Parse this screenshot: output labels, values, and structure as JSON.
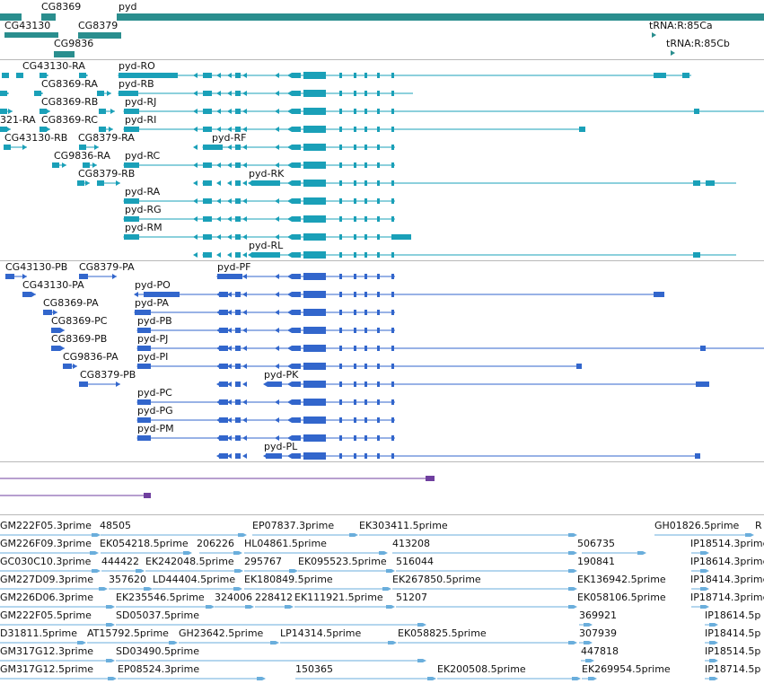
{
  "colors": {
    "gene": "#2a8e8e",
    "transcript": "#1aa0b8",
    "protein": "#3266cc",
    "other": "#6f3f9f",
    "est": "#6aaedc",
    "separator": "#b8b8b8"
  },
  "tracks": {
    "genes": {
      "labels": [
        "CG8369",
        "pyd",
        "CG43130",
        "CG8379",
        "tRNA:R:85Ca",
        "CG9836",
        "tRNA:R:85Cb"
      ]
    },
    "transcripts": {
      "labels": [
        "CG43130-RA",
        "pyd-RO",
        "CG8369-RA",
        "pyd-RB",
        "CG8369-RB",
        "pyd-RJ",
        "321-RA",
        "CG8369-RC",
        "pyd-RI",
        "CG43130-RB",
        "CG8379-RA",
        "pyd-RF",
        "CG9836-RA",
        "pyd-RC",
        "CG8379-RB",
        "pyd-RK",
        "pyd-RA",
        "pyd-RG",
        "pyd-RM",
        "pyd-RL"
      ]
    },
    "proteins": {
      "labels": [
        "CG43130-PB",
        "CG8379-PA",
        "pyd-PF",
        "CG43130-PA",
        "pyd-PO",
        "CG8369-PA",
        "pyd-PA",
        "CG8369-PC",
        "pyd-PB",
        "CG8369-PB",
        "pyd-PJ",
        "CG9836-PA",
        "pyd-PI",
        "CG8379-PB",
        "pyd-PK",
        "pyd-PC",
        "pyd-PG",
        "pyd-PM",
        "pyd-PL"
      ]
    },
    "ests": {
      "labels": [
        "GM222F05.3prime",
        "48505",
        "EP07837.3prime",
        "EK303411.5prime",
        "GH01826.5prime",
        "R",
        "GM226F09.3prime",
        "EK054218.5prime",
        "206226",
        "HL04861.5prime",
        "413208",
        "506735",
        "IP18514.3prime",
        "GC030C10.3prime",
        "444422",
        "EK242048.5prime",
        "295767",
        "EK095523.5prime",
        "516044",
        "190841",
        "IP18614.3prime",
        "GM227D09.3prime",
        "357620",
        "LD44404.5prime",
        "EK180849.5prime",
        "EK267850.5prime",
        "EK136942.5prime",
        "IP18414.3prime",
        "GM226D06.3prime",
        "EK235546.5prime",
        "324006",
        "228412",
        "EK111921.5prime",
        "51207",
        "EK058106.5prime",
        "IP18714.3prime",
        "GM222F05.5prime",
        "SD05037.5prime",
        "369921",
        "IP18614.5p",
        "D31811.5prime",
        "AT15792.5prime",
        "GH23642.5prime",
        "LP14314.5prime",
        "EK058825.5prime",
        "307939",
        "IP18414.5p",
        "GM317G12.3prime",
        "SD03490.5prime",
        "447818",
        "IP18514.5p",
        "GM317G12.5prime",
        "EP08524.3prime",
        "150365",
        "EK200508.5prime",
        "EK269954.5prime",
        "IP18714.5p"
      ]
    }
  }
}
